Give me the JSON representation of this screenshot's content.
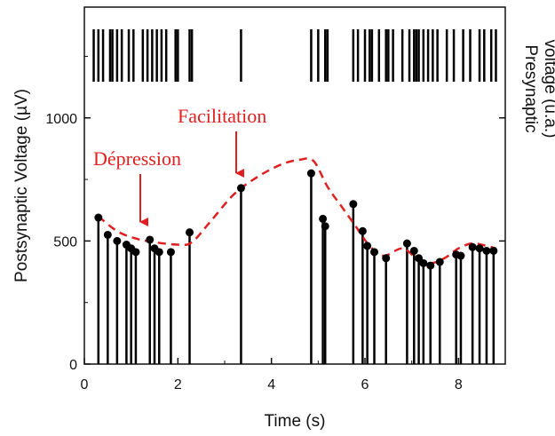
{
  "chart_data": {
    "type": "scatter",
    "xlabel": "Time (s)",
    "ylabel": "Postsynaptic Voltage (µV)",
    "y2label_line1": "Presynaptic",
    "y2label_line2": "voltage (u.a.)",
    "xlim": [
      0,
      9.0
    ],
    "ylim": [
      0,
      1450
    ],
    "xticks": [
      0,
      2,
      4,
      6,
      8
    ],
    "yticks": [
      0,
      500,
      1000
    ],
    "y2ticks": [
      500,
      1000
    ],
    "series": [
      {
        "points": [
          {
            "x": 0.3,
            "y": 595
          },
          {
            "x": 0.5,
            "y": 525
          },
          {
            "x": 0.7,
            "y": 500
          },
          {
            "x": 0.9,
            "y": 485
          },
          {
            "x": 1.0,
            "y": 470
          },
          {
            "x": 1.1,
            "y": 455
          },
          {
            "x": 1.4,
            "y": 505
          },
          {
            "x": 1.5,
            "y": 470
          },
          {
            "x": 1.6,
            "y": 455
          },
          {
            "x": 1.85,
            "y": 455
          },
          {
            "x": 2.25,
            "y": 535
          },
          {
            "x": 3.35,
            "y": 715
          },
          {
            "x": 4.85,
            "y": 775
          },
          {
            "x": 5.1,
            "y": 590
          },
          {
            "x": 5.15,
            "y": 560
          },
          {
            "x": 5.75,
            "y": 650
          },
          {
            "x": 5.95,
            "y": 540
          },
          {
            "x": 6.05,
            "y": 480
          },
          {
            "x": 6.2,
            "y": 455
          },
          {
            "x": 6.45,
            "y": 430
          },
          {
            "x": 6.9,
            "y": 490
          },
          {
            "x": 7.05,
            "y": 460
          },
          {
            "x": 7.15,
            "y": 430
          },
          {
            "x": 7.25,
            "y": 410
          },
          {
            "x": 7.4,
            "y": 400
          },
          {
            "x": 7.6,
            "y": 415
          },
          {
            "x": 7.95,
            "y": 445
          },
          {
            "x": 8.05,
            "y": 440
          },
          {
            "x": 8.3,
            "y": 475
          },
          {
            "x": 8.45,
            "y": 470
          },
          {
            "x": 8.6,
            "y": 460
          },
          {
            "x": 8.75,
            "y": 460
          }
        ]
      }
    ],
    "fit_curve": [
      {
        "x": 0.3,
        "y": 600
      },
      {
        "x": 0.7,
        "y": 540
      },
      {
        "x": 1.1,
        "y": 510
      },
      {
        "x": 1.5,
        "y": 495
      },
      {
        "x": 2.0,
        "y": 485
      },
      {
        "x": 2.3,
        "y": 495
      },
      {
        "x": 2.7,
        "y": 580
      },
      {
        "x": 3.2,
        "y": 690
      },
      {
        "x": 3.7,
        "y": 760
      },
      {
        "x": 4.2,
        "y": 810
      },
      {
        "x": 4.6,
        "y": 830
      },
      {
        "x": 4.9,
        "y": 825
      },
      {
        "x": 5.2,
        "y": 720
      },
      {
        "x": 5.5,
        "y": 640
      },
      {
        "x": 5.8,
        "y": 560
      },
      {
        "x": 6.1,
        "y": 480
      },
      {
        "x": 6.4,
        "y": 440
      },
      {
        "x": 6.8,
        "y": 470
      },
      {
        "x": 7.1,
        "y": 430
      },
      {
        "x": 7.4,
        "y": 410
      },
      {
        "x": 7.7,
        "y": 430
      },
      {
        "x": 8.0,
        "y": 470
      },
      {
        "x": 8.3,
        "y": 490
      },
      {
        "x": 8.6,
        "y": 480
      },
      {
        "x": 8.8,
        "y": 470
      }
    ],
    "presynaptic_spikes": [
      0.2,
      0.3,
      0.4,
      0.55,
      0.6,
      0.7,
      0.8,
      0.95,
      1.05,
      1.25,
      1.35,
      1.45,
      1.55,
      1.65,
      1.75,
      1.95,
      2.0,
      2.25,
      2.3,
      3.35,
      4.85,
      5.0,
      5.15,
      5.2,
      5.75,
      5.85,
      6.0,
      6.1,
      6.15,
      6.3,
      6.45,
      6.5,
      6.6,
      6.8,
      6.95,
      7.05,
      7.1,
      7.15,
      7.25,
      7.35,
      7.45,
      7.55,
      7.75,
      7.9,
      8.1,
      8.25,
      8.45,
      8.55,
      8.7,
      8.8
    ],
    "annotations": [
      {
        "text": "Dépression",
        "x": 1.1,
        "y": 540
      },
      {
        "text": "Facilitation",
        "x": 3.2,
        "y": 830
      }
    ],
    "colors": {
      "annotation": "#e02020",
      "data": "#000000"
    },
    "grid": false
  }
}
